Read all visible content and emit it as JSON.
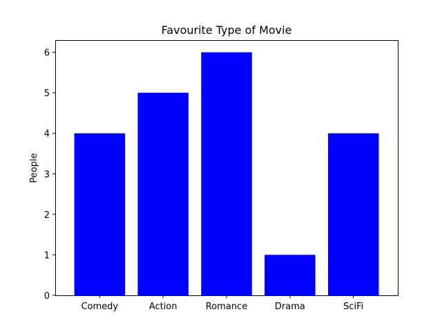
{
  "chart_data": {
    "type": "bar",
    "title": "Favourite Type of Movie",
    "xlabel": "",
    "ylabel": "People",
    "categories": [
      "Comedy",
      "Action",
      "Romance",
      "Drama",
      "SciFi"
    ],
    "values": [
      4,
      5,
      6,
      1,
      4
    ],
    "ylim": [
      0,
      6.3
    ],
    "yticks": [
      0,
      1,
      2,
      3,
      4,
      5,
      6
    ],
    "bar_color": "#0000ff",
    "grid": false,
    "legend": "none"
  }
}
